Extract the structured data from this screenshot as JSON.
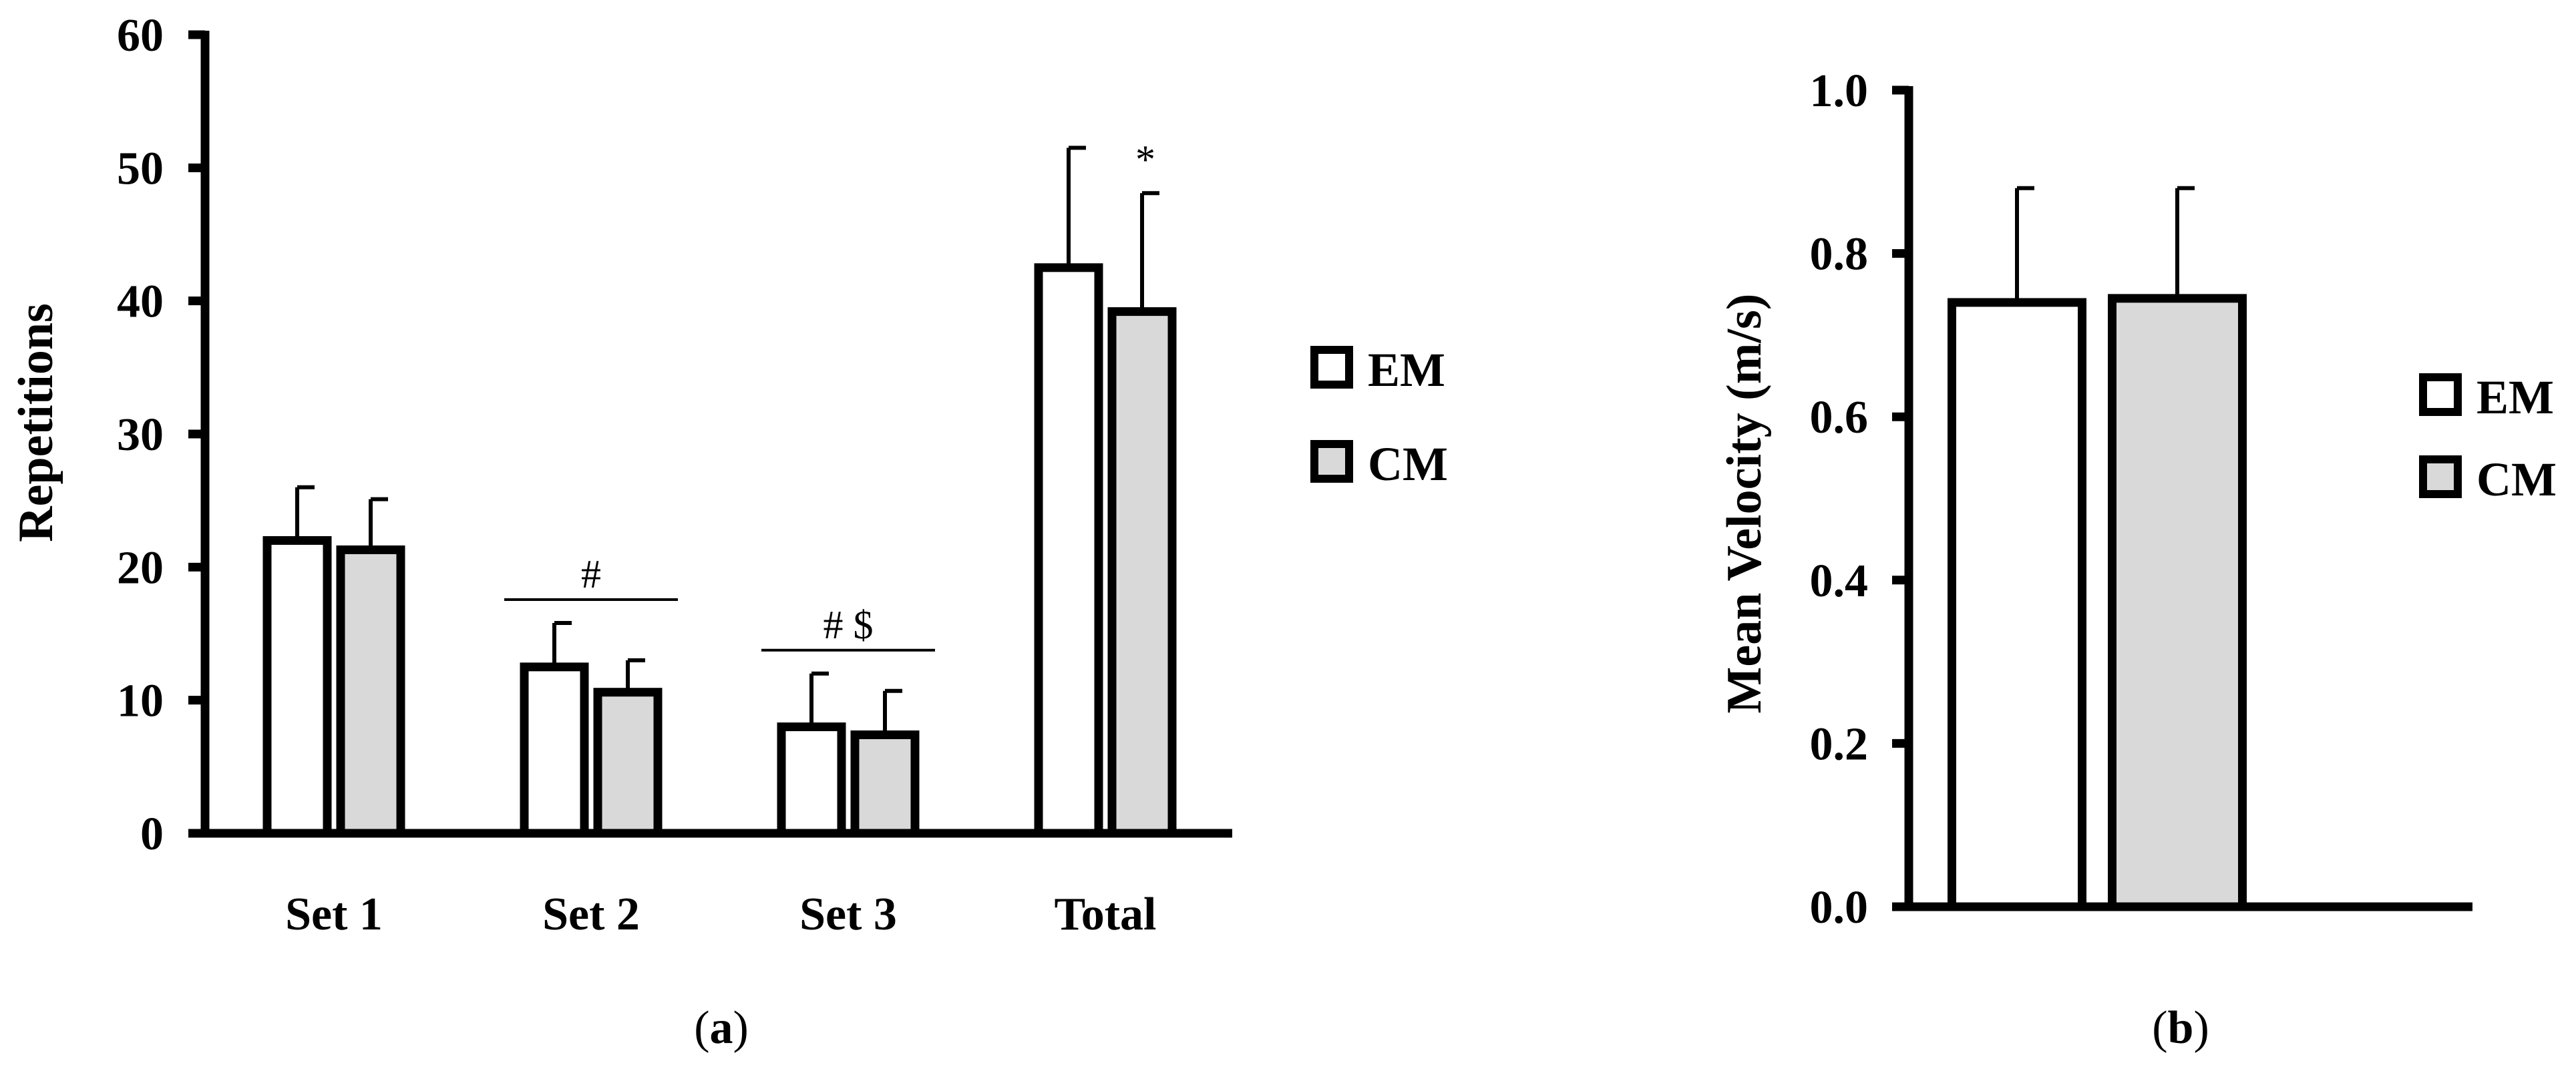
{
  "chart_data": [
    {
      "type": "bar",
      "panel_label": "a",
      "ylabel": "Repetitions",
      "ylim": [
        0,
        60
      ],
      "yticks": [
        "0",
        "10",
        "20",
        "30",
        "40",
        "50",
        "60"
      ],
      "categories": [
        "Set 1",
        "Set 2",
        "Set 3",
        "Total"
      ],
      "series": [
        {
          "name": "EM",
          "values": [
            22.0,
            12.5,
            8.0,
            42.5
          ],
          "errors": [
            4.0,
            3.3,
            4.0,
            9.0
          ],
          "fill": "#ffffff"
        },
        {
          "name": "CM",
          "values": [
            21.3,
            10.6,
            7.4,
            39.2
          ],
          "errors": [
            3.8,
            2.4,
            3.3,
            8.9
          ],
          "fill": "#d9d9d9"
        }
      ],
      "annotations": [
        {
          "category": "Set 2",
          "text": "#",
          "bracket": true
        },
        {
          "category": "Set 3",
          "text": "# $",
          "bracket": true
        },
        {
          "category": "Total",
          "text": "*",
          "bracket": false
        }
      ],
      "legend_position": "right",
      "grid": false
    },
    {
      "type": "bar",
      "panel_label": "b",
      "ylabel": "Mean Velocity (m/s)",
      "ylim": [
        0,
        1.0
      ],
      "yticks": [
        "0.0",
        "0.2",
        "0.4",
        "0.6",
        "0.8",
        "1.0"
      ],
      "categories": [
        ""
      ],
      "series": [
        {
          "name": "EM",
          "values": [
            0.74
          ],
          "errors": [
            0.14
          ],
          "fill": "#ffffff"
        },
        {
          "name": "CM",
          "values": [
            0.745
          ],
          "errors": [
            0.135
          ],
          "fill": "#d9d9d9"
        }
      ],
      "legend_position": "right",
      "grid": false
    }
  ]
}
